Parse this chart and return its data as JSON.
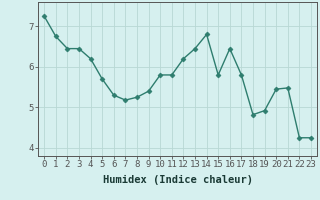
{
  "x": [
    0,
    1,
    2,
    3,
    4,
    5,
    6,
    7,
    8,
    9,
    10,
    11,
    12,
    13,
    14,
    15,
    16,
    17,
    18,
    19,
    20,
    21,
    22,
    23
  ],
  "y": [
    7.25,
    6.75,
    6.45,
    6.45,
    6.2,
    5.7,
    5.3,
    5.18,
    5.25,
    5.4,
    5.8,
    5.8,
    6.2,
    6.45,
    6.8,
    5.8,
    6.45,
    5.8,
    4.82,
    4.92,
    5.45,
    5.48,
    4.25,
    4.25
  ],
  "line_color": "#2e7d6e",
  "marker": "D",
  "marker_size": 2.5,
  "bg_color": "#d6f0ef",
  "grid_color": "#b8d8d4",
  "axis_color": "#555555",
  "xlabel": "Humidex (Indice chaleur)",
  "xlim": [
    -0.5,
    23.5
  ],
  "ylim": [
    3.8,
    7.6
  ],
  "yticks": [
    4,
    5,
    6,
    7
  ],
  "xticks": [
    0,
    1,
    2,
    3,
    4,
    5,
    6,
    7,
    8,
    9,
    10,
    11,
    12,
    13,
    14,
    15,
    16,
    17,
    18,
    19,
    20,
    21,
    22,
    23
  ],
  "xlabel_fontsize": 7.5,
  "tick_fontsize": 6.5,
  "linewidth": 1.0
}
